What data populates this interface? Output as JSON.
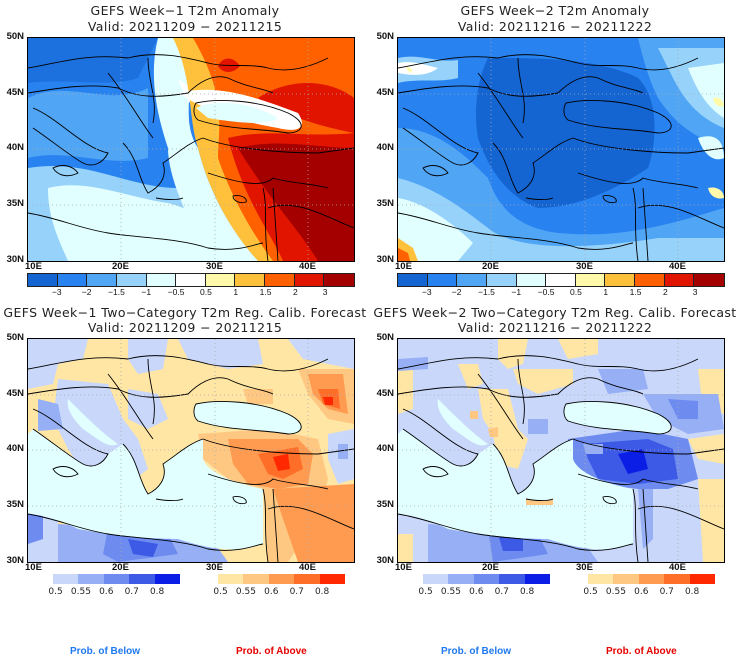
{
  "panels": [
    {
      "id": "week1-anomaly",
      "title": "GEFS Week−1 T2m Anomaly",
      "valid": "Valid: 20211209 − 20211215",
      "kind": "anomaly"
    },
    {
      "id": "week2-anomaly",
      "title": "GEFS Week−2 T2m Anomaly",
      "valid": "Valid: 20211216 − 20211222",
      "kind": "anomaly"
    },
    {
      "id": "week1-prob",
      "title": "GEFS Week−1 Two−Category T2m Reg. Calib. Forecast",
      "valid": "Valid: 20211209 − 20211215",
      "kind": "prob"
    },
    {
      "id": "week2-prob",
      "title": "GEFS Week−2 Two−Category T2m Reg. Calib. Forecast",
      "valid": "Valid: 20211216 − 20211222",
      "kind": "prob"
    }
  ],
  "axes": {
    "lat_labels": [
      "50N",
      "45N",
      "40N",
      "35N",
      "30N"
    ],
    "lon_labels": [
      "10E",
      "20E",
      "30E",
      "40E"
    ],
    "lat_range": [
      30,
      50
    ],
    "lon_range": [
      10,
      45
    ]
  },
  "anomaly_colorbar": {
    "labels": [
      "−3",
      "−2",
      "−1.5",
      "−1",
      "−0.5",
      "0.5",
      "1",
      "1.5",
      "2",
      "3"
    ],
    "colors": [
      "#1464d2",
      "#2882f0",
      "#50a5f5",
      "#96d2fa",
      "#e1ffff",
      "#ffffff",
      "#fffaaa",
      "#ffc03c",
      "#ff6000",
      "#e11400",
      "#a50000"
    ]
  },
  "prob_below_colorbar": {
    "labels": [
      "0.5",
      "0.55",
      "0.6",
      "0.7",
      "0.8"
    ],
    "colors": [
      "#c8d7fa",
      "#96aff5",
      "#6e8cf0",
      "#3c5ae6",
      "#0a1ee6"
    ]
  },
  "prob_above_colorbar": {
    "labels": [
      "0.5",
      "0.55",
      "0.6",
      "0.7",
      "0.8"
    ],
    "colors": [
      "#ffe6a5",
      "#ffc882",
      "#ff9b50",
      "#ff6e28",
      "#ff2800"
    ]
  },
  "map_colors": {
    "sea_prob": "#e1ffff",
    "border": "#000000",
    "grid": "#aaaaaa"
  },
  "footer": {
    "below_label": "Prob. of Below",
    "above_label": "Prob. of Above",
    "below_color": "#1e78f0",
    "above_color": "#e60000"
  }
}
